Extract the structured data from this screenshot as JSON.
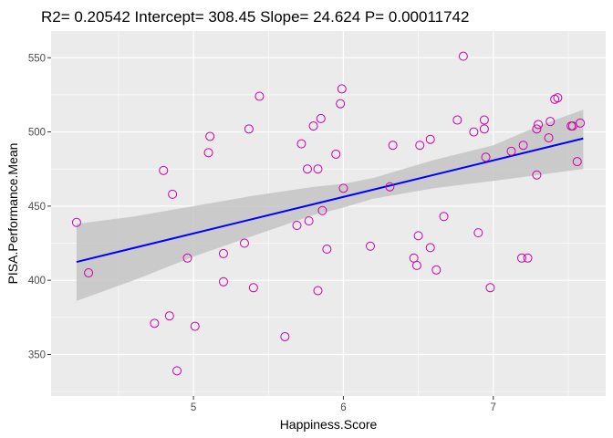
{
  "chart_data": {
    "type": "scatter",
    "title": "R2= 0.20542 Intercept= 308.45 Slope= 24.624 P= 0.00011742",
    "xlabel": "Happiness.Score",
    "ylabel": "PISA.Performance.Mean",
    "xlim": [
      4.05,
      7.75
    ],
    "ylim": [
      322,
      568
    ],
    "x_ticks": [
      5,
      6,
      7
    ],
    "y_ticks": [
      350,
      400,
      450,
      500,
      550
    ],
    "x_tick_labels": [
      "5",
      "6",
      "7"
    ],
    "y_tick_labels": [
      "350",
      "400",
      "450",
      "500",
      "550"
    ],
    "grid": true,
    "background_color": "#ebebeb",
    "grid_color": "#ffffff",
    "point_color": "#cc00aa",
    "line_color": "#0000ff",
    "ribbon_color": "#c4c4c4",
    "regression_line": {
      "intercept": 308.45,
      "slope": 24.624,
      "x_range": [
        4.22,
        7.6
      ]
    },
    "confidence_band": {
      "x": [
        4.22,
        4.6,
        5.0,
        5.4,
        5.8,
        6.0,
        6.2,
        6.6,
        7.0,
        7.3,
        7.6
      ],
      "lower": [
        386,
        400,
        416,
        430,
        444,
        449,
        455,
        462,
        467,
        471,
        475
      ],
      "upper": [
        438,
        443,
        450,
        457,
        463,
        465,
        469,
        481,
        491,
        504,
        515
      ]
    },
    "points": [
      {
        "x": 4.22,
        "y": 439
      },
      {
        "x": 4.3,
        "y": 405
      },
      {
        "x": 4.74,
        "y": 371
      },
      {
        "x": 4.8,
        "y": 474
      },
      {
        "x": 4.84,
        "y": 376
      },
      {
        "x": 4.86,
        "y": 458
      },
      {
        "x": 4.89,
        "y": 339
      },
      {
        "x": 4.96,
        "y": 415
      },
      {
        "x": 5.01,
        "y": 369
      },
      {
        "x": 5.1,
        "y": 486
      },
      {
        "x": 5.11,
        "y": 497
      },
      {
        "x": 5.2,
        "y": 399
      },
      {
        "x": 5.2,
        "y": 418
      },
      {
        "x": 5.34,
        "y": 425
      },
      {
        "x": 5.37,
        "y": 502
      },
      {
        "x": 5.4,
        "y": 395
      },
      {
        "x": 5.44,
        "y": 524
      },
      {
        "x": 5.61,
        "y": 362
      },
      {
        "x": 5.69,
        "y": 437
      },
      {
        "x": 5.72,
        "y": 492
      },
      {
        "x": 5.76,
        "y": 475
      },
      {
        "x": 5.77,
        "y": 440
      },
      {
        "x": 5.8,
        "y": 504
      },
      {
        "x": 5.83,
        "y": 475
      },
      {
        "x": 5.83,
        "y": 393
      },
      {
        "x": 5.85,
        "y": 509
      },
      {
        "x": 5.86,
        "y": 447
      },
      {
        "x": 5.89,
        "y": 421
      },
      {
        "x": 5.95,
        "y": 485
      },
      {
        "x": 5.98,
        "y": 519
      },
      {
        "x": 5.99,
        "y": 529
      },
      {
        "x": 6.0,
        "y": 462
      },
      {
        "x": 6.18,
        "y": 423
      },
      {
        "x": 6.31,
        "y": 463
      },
      {
        "x": 6.33,
        "y": 491
      },
      {
        "x": 6.47,
        "y": 415
      },
      {
        "x": 6.49,
        "y": 410
      },
      {
        "x": 6.5,
        "y": 430
      },
      {
        "x": 6.51,
        "y": 491
      },
      {
        "x": 6.58,
        "y": 422
      },
      {
        "x": 6.58,
        "y": 495
      },
      {
        "x": 6.62,
        "y": 407
      },
      {
        "x": 6.67,
        "y": 443
      },
      {
        "x": 6.76,
        "y": 508
      },
      {
        "x": 6.8,
        "y": 551
      },
      {
        "x": 6.87,
        "y": 500
      },
      {
        "x": 6.9,
        "y": 432
      },
      {
        "x": 6.94,
        "y": 502
      },
      {
        "x": 6.94,
        "y": 508
      },
      {
        "x": 6.95,
        "y": 483
      },
      {
        "x": 6.98,
        "y": 395
      },
      {
        "x": 7.12,
        "y": 487
      },
      {
        "x": 7.19,
        "y": 415
      },
      {
        "x": 7.2,
        "y": 491
      },
      {
        "x": 7.23,
        "y": 415
      },
      {
        "x": 7.29,
        "y": 471
      },
      {
        "x": 7.29,
        "y": 502
      },
      {
        "x": 7.3,
        "y": 505
      },
      {
        "x": 7.37,
        "y": 496
      },
      {
        "x": 7.38,
        "y": 507
      },
      {
        "x": 7.41,
        "y": 522
      },
      {
        "x": 7.43,
        "y": 523
      },
      {
        "x": 7.52,
        "y": 504
      },
      {
        "x": 7.53,
        "y": 504
      },
      {
        "x": 7.56,
        "y": 480
      },
      {
        "x": 7.58,
        "y": 506
      }
    ]
  }
}
